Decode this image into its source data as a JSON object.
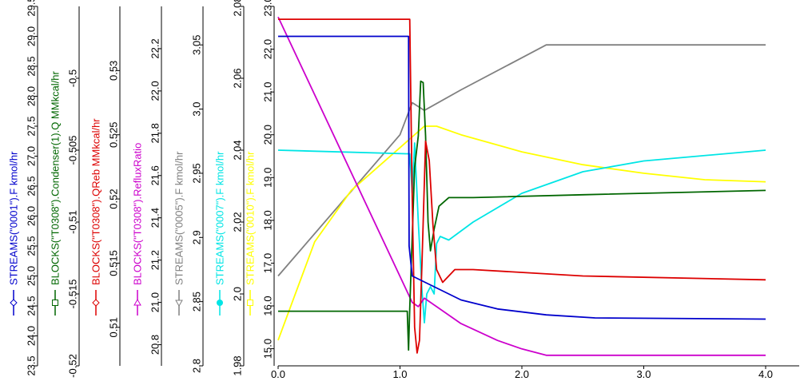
{
  "chart_data": {
    "type": "line",
    "x_axis": {
      "range": [
        0,
        4
      ],
      "ticks": [
        "0.0",
        "1.0",
        "2.0",
        "3.0",
        "4.0"
      ]
    },
    "y_axes": [
      {
        "id": "a1",
        "label": "STREAMS(\"0001\").F kmol/hr",
        "color": "#0000cc",
        "range": [
          23.5,
          29.5
        ],
        "ticks": [
          "23.5",
          "24.0",
          "24.5",
          "25.0",
          "25.5",
          "26.0",
          "26.5",
          "27.0",
          "27.5",
          "28.0",
          "28.5",
          "29.0",
          "29.5"
        ]
      },
      {
        "id": "a2",
        "label": "BLOCKS(\"T0308\").Condenser(1).Q MMkcal/hr",
        "color": "#006600",
        "range": [
          -0.52,
          -0.495
        ],
        "ticks": [
          "-0.52",
          "-0.515",
          "-0.51",
          "-0.505",
          "-0.5"
        ]
      },
      {
        "id": "a3",
        "label": "BLOCKS(\"T0308\").QReb MMkcal/hr",
        "color": "#dd0000",
        "range": [
          0.507,
          0.535
        ],
        "ticks": [
          "0.51",
          "0.515",
          "0.52",
          "0.525",
          "0.53"
        ]
      },
      {
        "id": "a4",
        "label": "BLOCKS(\"T0308\").RefluxRatio",
        "color": "#cc00cc",
        "range": [
          20.7,
          22.4
        ],
        "ticks": [
          "20.8",
          "21.0",
          "21.2",
          "21.4",
          "21.6",
          "21.8",
          "22.0",
          "22.2"
        ]
      },
      {
        "id": "a5",
        "label": "STREAMS(\"0005\").F kmol/hr",
        "color": "#808080",
        "range": [
          2.8,
          3.08
        ],
        "ticks": [
          "2.8",
          "2.85",
          "2.9",
          "2.95",
          "3.0",
          "3.05"
        ]
      },
      {
        "id": "a6",
        "label": "STREAMS(\"0007\").F kmol/hr",
        "color": "#00e5e5",
        "range": [
          1.98,
          2.08
        ],
        "ticks": [
          "1.98",
          "2.0",
          "2.02",
          "2.04",
          "2.06",
          "2.08"
        ]
      },
      {
        "id": "a7",
        "label": "STREAMS(\"0010\").F kmol/hr",
        "color": "#ffff00",
        "range": [
          14.6,
          23.0
        ],
        "ticks": [
          "15.0",
          "16.0",
          "17.0",
          "18.0",
          "19.0",
          "20.0",
          "21.0",
          "22.0",
          "23.0"
        ]
      }
    ],
    "series": [
      {
        "axis": "a1",
        "color": "#0000cc",
        "points": [
          [
            0,
            29.0
          ],
          [
            1.07,
            29.0
          ],
          [
            1.075,
            25.5
          ],
          [
            1.1,
            25.0
          ],
          [
            1.2,
            24.9
          ],
          [
            1.3,
            24.8
          ],
          [
            1.5,
            24.6
          ],
          [
            1.8,
            24.45
          ],
          [
            2.2,
            24.35
          ],
          [
            2.6,
            24.3
          ],
          [
            4.0,
            24.28
          ]
        ]
      },
      {
        "axis": "a2",
        "color": "#006600",
        "points": [
          [
            0,
            -0.5162
          ],
          [
            1.06,
            -0.5162
          ],
          [
            1.07,
            -0.5189
          ],
          [
            1.08,
            -0.516
          ],
          [
            1.1,
            -0.511
          ],
          [
            1.12,
            -0.5062
          ],
          [
            1.15,
            -0.504
          ],
          [
            1.17,
            -0.5002
          ],
          [
            1.19,
            -0.5003
          ],
          [
            1.21,
            -0.504
          ],
          [
            1.23,
            -0.51
          ],
          [
            1.25,
            -0.512
          ],
          [
            1.28,
            -0.5105
          ],
          [
            1.32,
            -0.5089
          ],
          [
            1.4,
            -0.5083
          ],
          [
            1.6,
            -0.5083
          ],
          [
            2.5,
            -0.5081
          ],
          [
            4.0,
            -0.5078
          ]
        ]
      },
      {
        "axis": "a3",
        "color": "#dd0000",
        "points": [
          [
            0,
            0.534
          ],
          [
            1.08,
            0.534
          ],
          [
            1.1,
            0.52
          ],
          [
            1.12,
            0.51
          ],
          [
            1.14,
            0.508
          ],
          [
            1.16,
            0.509
          ],
          [
            1.18,
            0.515
          ],
          [
            1.21,
            0.5245
          ],
          [
            1.24,
            0.523
          ],
          [
            1.27,
            0.518
          ],
          [
            1.3,
            0.5145
          ],
          [
            1.35,
            0.5135
          ],
          [
            1.45,
            0.5145
          ],
          [
            1.6,
            0.5145
          ],
          [
            2.5,
            0.514
          ],
          [
            4.0,
            0.5137
          ]
        ]
      },
      {
        "axis": "a4",
        "color": "#cc00cc",
        "points": [
          [
            0,
            22.35
          ],
          [
            1.1,
            21.0
          ],
          [
            1.15,
            20.98
          ],
          [
            1.2,
            21.02
          ],
          [
            1.3,
            20.98
          ],
          [
            1.5,
            20.9
          ],
          [
            1.8,
            20.82
          ],
          [
            2.0,
            20.78
          ],
          [
            2.2,
            20.75
          ],
          [
            4.0,
            20.75
          ]
        ]
      },
      {
        "axis": "a5",
        "color": "#808080",
        "points": [
          [
            0,
            2.87
          ],
          [
            1.0,
            2.98
          ],
          [
            1.1,
            3.005
          ],
          [
            1.2,
            2.999
          ],
          [
            1.5,
            3.015
          ],
          [
            2.0,
            3.04
          ],
          [
            2.2,
            3.05
          ],
          [
            4.0,
            3.05
          ]
        ]
      },
      {
        "axis": "a6",
        "color": "#00e5e5",
        "points": [
          [
            0,
            2.04
          ],
          [
            1.05,
            2.039
          ],
          [
            1.08,
            2.039
          ],
          [
            1.1,
            2.028
          ],
          [
            1.12,
            2.042
          ],
          [
            1.15,
            2.02
          ],
          [
            1.18,
            2.001
          ],
          [
            1.2,
            1.992
          ],
          [
            1.22,
            2.0
          ],
          [
            1.25,
            2.002
          ],
          [
            1.28,
            2.0
          ],
          [
            1.3,
            2.014
          ],
          [
            1.33,
            2.016
          ],
          [
            1.4,
            2.015
          ],
          [
            1.6,
            2.02
          ],
          [
            2.0,
            2.028
          ],
          [
            2.5,
            2.034
          ],
          [
            3.0,
            2.037
          ],
          [
            4.0,
            2.04
          ]
        ]
      },
      {
        "axis": "a7",
        "color": "#ffff00",
        "points": [
          [
            0,
            15.2
          ],
          [
            0.3,
            17.5
          ],
          [
            0.6,
            18.7
          ],
          [
            1.0,
            19.7
          ],
          [
            1.2,
            20.2
          ],
          [
            1.3,
            20.2
          ],
          [
            1.5,
            20.0
          ],
          [
            2.0,
            19.6
          ],
          [
            2.5,
            19.3
          ],
          [
            3.0,
            19.1
          ],
          [
            3.5,
            18.95
          ],
          [
            4.0,
            18.9
          ]
        ]
      }
    ]
  }
}
